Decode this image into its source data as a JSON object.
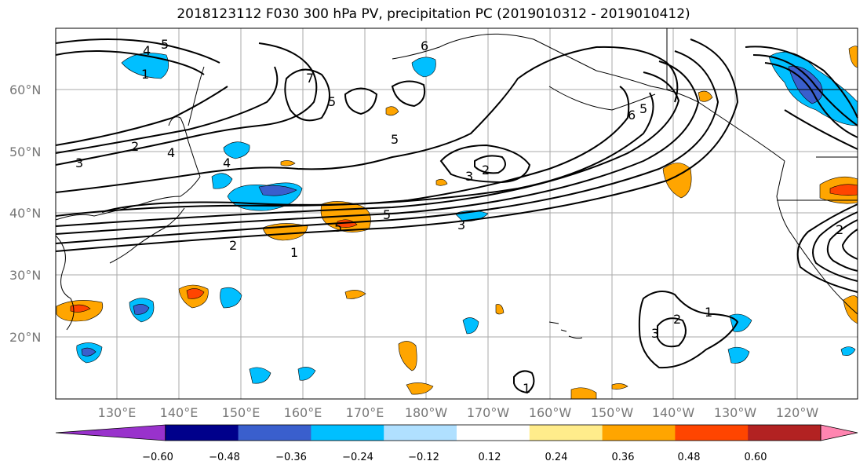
{
  "title": "2018123112 F030 300 hPa PV, precipitation PC (2019010312 - 2019010412)",
  "map": {
    "lat_labels": [
      "60°N",
      "50°N",
      "40°N",
      "30°N",
      "20°N"
    ],
    "lon_labels": [
      "130°E",
      "140°E",
      "150°E",
      "160°E",
      "170°E",
      "180°W",
      "170°W",
      "160°W",
      "150°W",
      "140°W",
      "130°W",
      "120°W"
    ],
    "grid_color": "#aaaaaa",
    "contour_labels": [
      "5",
      "4",
      "1",
      "6",
      "7",
      "5",
      "5",
      "2",
      "3",
      "4",
      "4",
      "5",
      "3",
      "2",
      "1",
      "5",
      "3",
      "2",
      "1",
      "2",
      "3",
      "1",
      "6",
      "5",
      "2"
    ]
  },
  "colorbar": {
    "colors": [
      "#9932cc",
      "#00008b",
      "#3a5fcd",
      "#00bfff",
      "#b0e0ff",
      "#ffffff",
      "#ffec8b",
      "#ffa500",
      "#ff4500",
      "#b22222",
      "#ff85b0"
    ],
    "tick_labels": [
      "−0.60",
      "−0.48",
      "−0.36",
      "−0.24",
      "−0.12",
      "0.12",
      "0.24",
      "0.36",
      "0.48",
      "0.60"
    ]
  }
}
